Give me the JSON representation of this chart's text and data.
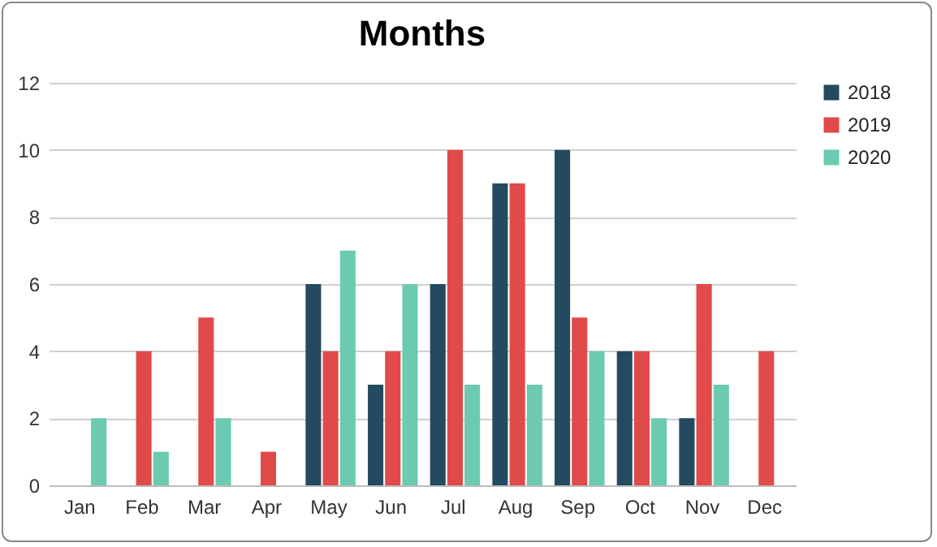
{
  "chart_data": {
    "type": "bar",
    "title": "Months",
    "categories": [
      "Jan",
      "Feb",
      "Mar",
      "Apr",
      "May",
      "Jun",
      "Jul",
      "Aug",
      "Sep",
      "Oct",
      "Nov",
      "Dec"
    ],
    "series": [
      {
        "name": "2018",
        "color": "#244a5f",
        "values": [
          0,
          0,
          0,
          0,
          6,
          3,
          6,
          9,
          10,
          4,
          2,
          0
        ]
      },
      {
        "name": "2019",
        "color": "#e04a4a",
        "values": [
          0,
          4,
          5,
          1,
          4,
          4,
          10,
          9,
          5,
          4,
          6,
          4
        ]
      },
      {
        "name": "2020",
        "color": "#6ccab0",
        "values": [
          2,
          1,
          2,
          0,
          7,
          6,
          3,
          3,
          4,
          2,
          3,
          0
        ]
      }
    ],
    "ylim": [
      0,
      12
    ],
    "yticks": [
      0,
      2,
      4,
      6,
      8,
      10,
      12
    ],
    "grid": "y",
    "legend": "right"
  }
}
